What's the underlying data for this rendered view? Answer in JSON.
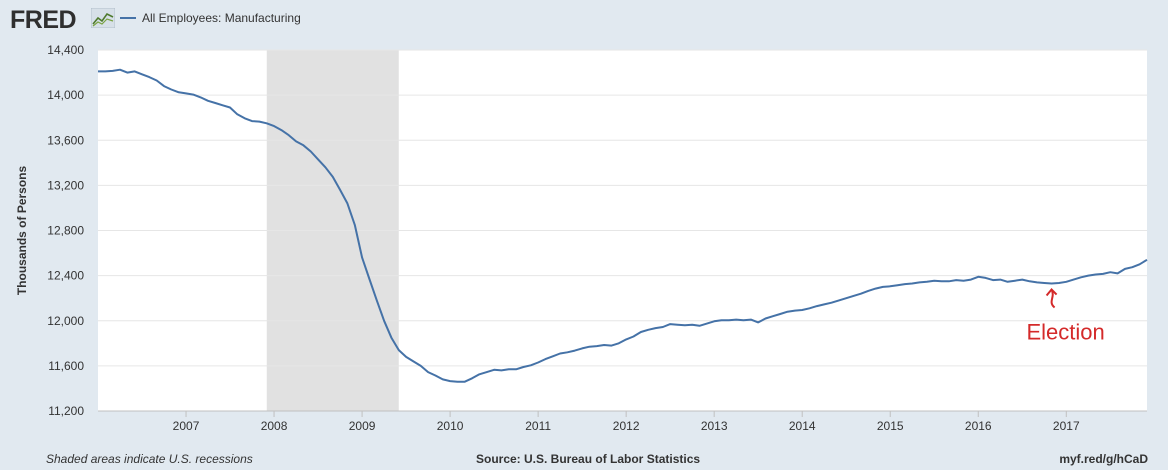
{
  "header": {
    "logo_text": "FRED",
    "series_title": "All Employees: Manufacturing"
  },
  "footer": {
    "recession_note": "Shaded areas indicate U.S. recessions",
    "source": "Source: U.S. Bureau of Labor Statistics",
    "short_url": "myf.red/g/hCaD"
  },
  "colors": {
    "line": "#4572a7",
    "recession_shade": "#e1e1e1",
    "annotation": "#d42a2a",
    "background": "#e1e9f0"
  },
  "chart_data": {
    "type": "line",
    "title": "",
    "xlabel": "",
    "ylabel": "Thousands of Persons",
    "xlim": [
      2006.0,
      2017.917
    ],
    "ylim": [
      11200,
      14400
    ],
    "yticks": [
      11200,
      11600,
      12000,
      12400,
      12800,
      13200,
      13600,
      14000,
      14400
    ],
    "ytick_labels": [
      "11,200",
      "11,600",
      "12,000",
      "12,400",
      "12,800",
      "13,200",
      "13,600",
      "14,000",
      "14,400"
    ],
    "xticks": [
      2007,
      2008,
      2009,
      2010,
      2011,
      2012,
      2013,
      2014,
      2015,
      2016,
      2017
    ],
    "xtick_labels": [
      "2007",
      "2008",
      "2009",
      "2010",
      "2011",
      "2012",
      "2013",
      "2014",
      "2015",
      "2016",
      "2017"
    ],
    "grid": true,
    "legend": "top-left",
    "recessions": [
      {
        "start": 2007.917,
        "end": 2009.417
      }
    ],
    "annotations": [
      {
        "text": "Election",
        "x": 2016.833,
        "y": 12330
      }
    ],
    "series": [
      {
        "name": "All Employees: Manufacturing",
        "x": [
          2006.0,
          2006.083,
          2006.167,
          2006.25,
          2006.333,
          2006.417,
          2006.5,
          2006.583,
          2006.667,
          2006.75,
          2006.833,
          2006.917,
          2007.0,
          2007.083,
          2007.167,
          2007.25,
          2007.333,
          2007.417,
          2007.5,
          2007.583,
          2007.667,
          2007.75,
          2007.833,
          2007.917,
          2008.0,
          2008.083,
          2008.167,
          2008.25,
          2008.333,
          2008.417,
          2008.5,
          2008.583,
          2008.667,
          2008.75,
          2008.833,
          2008.917,
          2009.0,
          2009.083,
          2009.167,
          2009.25,
          2009.333,
          2009.417,
          2009.5,
          2009.583,
          2009.667,
          2009.75,
          2009.833,
          2009.917,
          2010.0,
          2010.083,
          2010.167,
          2010.25,
          2010.333,
          2010.417,
          2010.5,
          2010.583,
          2010.667,
          2010.75,
          2010.833,
          2010.917,
          2011.0,
          2011.083,
          2011.167,
          2011.25,
          2011.333,
          2011.417,
          2011.5,
          2011.583,
          2011.667,
          2011.75,
          2011.833,
          2011.917,
          2012.0,
          2012.083,
          2012.167,
          2012.25,
          2012.333,
          2012.417,
          2012.5,
          2012.583,
          2012.667,
          2012.75,
          2012.833,
          2012.917,
          2013.0,
          2013.083,
          2013.167,
          2013.25,
          2013.333,
          2013.417,
          2013.5,
          2013.583,
          2013.667,
          2013.75,
          2013.833,
          2013.917,
          2014.0,
          2014.083,
          2014.167,
          2014.25,
          2014.333,
          2014.417,
          2014.5,
          2014.583,
          2014.667,
          2014.75,
          2014.833,
          2014.917,
          2015.0,
          2015.083,
          2015.167,
          2015.25,
          2015.333,
          2015.417,
          2015.5,
          2015.583,
          2015.667,
          2015.75,
          2015.833,
          2015.917,
          2016.0,
          2016.083,
          2016.167,
          2016.25,
          2016.333,
          2016.417,
          2016.5,
          2016.583,
          2016.667,
          2016.75,
          2016.833,
          2016.917,
          2017.0,
          2017.083,
          2017.167,
          2017.25,
          2017.333,
          2017.417,
          2017.5,
          2017.583,
          2017.667,
          2017.75,
          2017.833,
          2017.917
        ],
        "y": [
          14210,
          14210,
          14215,
          14225,
          14200,
          14210,
          14185,
          14160,
          14130,
          14080,
          14050,
          14025,
          14015,
          14005,
          13980,
          13950,
          13930,
          13910,
          13890,
          13830,
          13795,
          13770,
          13765,
          13750,
          13725,
          13690,
          13645,
          13590,
          13555,
          13500,
          13430,
          13360,
          13275,
          13160,
          13040,
          12850,
          12560,
          12370,
          12180,
          12000,
          11850,
          11740,
          11680,
          11640,
          11600,
          11545,
          11515,
          11480,
          11465,
          11460,
          11460,
          11490,
          11525,
          11545,
          11565,
          11560,
          11570,
          11570,
          11590,
          11605,
          11630,
          11660,
          11685,
          11710,
          11720,
          11735,
          11755,
          11770,
          11775,
          11785,
          11780,
          11800,
          11835,
          11860,
          11900,
          11920,
          11935,
          11945,
          11970,
          11965,
          11960,
          11965,
          11955,
          11975,
          11995,
          12005,
          12005,
          12010,
          12005,
          12010,
          11985,
          12020,
          12040,
          12060,
          12080,
          12090,
          12095,
          12110,
          12130,
          12145,
          12160,
          12180,
          12200,
          12220,
          12240,
          12265,
          12285,
          12300,
          12305,
          12315,
          12325,
          12330,
          12340,
          12345,
          12355,
          12350,
          12350,
          12360,
          12355,
          12365,
          12390,
          12380,
          12360,
          12365,
          12345,
          12355,
          12365,
          12350,
          12340,
          12335,
          12330,
          12335,
          12345,
          12365,
          12385,
          12400,
          12410,
          12415,
          12430,
          12420,
          12460,
          12475,
          12500,
          12540
        ]
      }
    ]
  }
}
